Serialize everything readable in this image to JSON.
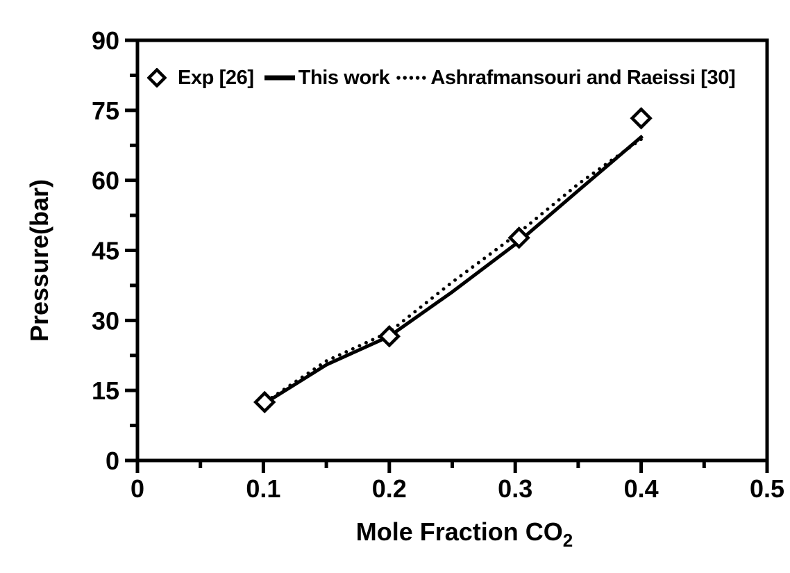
{
  "chart_data": {
    "type": "scatter",
    "title": "",
    "xlabel": "Mole Fraction CO2",
    "ylabel": "Pressure(bar)",
    "xlim": [
      0,
      0.5
    ],
    "ylim": [
      0,
      90
    ],
    "x_ticks": [
      0,
      0.1,
      0.2,
      0.3,
      0.4,
      0.5
    ],
    "x_tick_labels": [
      "0",
      "0.1",
      "0.2",
      "0.3",
      "0.4",
      "0.5"
    ],
    "x_minor_ticks": [
      0.05,
      0.15,
      0.25,
      0.35,
      0.45
    ],
    "y_ticks": [
      0,
      15,
      30,
      45,
      60,
      75,
      90
    ],
    "y_tick_labels": [
      "0",
      "15",
      "30",
      "45",
      "60",
      "75",
      "90"
    ],
    "y_minor_ticks": [
      7.5,
      22.5,
      37.5,
      52.5,
      67.5,
      82.5
    ],
    "grid": false,
    "legend_position": "inside-top",
    "background": "#ffffff",
    "foreground": "#000000",
    "series": [
      {
        "name": "Exp [26]",
        "slug": "exp-26",
        "type": "scatter",
        "marker": "open-diamond",
        "points": [
          [
            0.101,
            12.5
          ],
          [
            0.2,
            26.6
          ],
          [
            0.303,
            47.7
          ],
          [
            0.4,
            73.3
          ]
        ]
      },
      {
        "name": "This work",
        "slug": "this-work",
        "type": "line",
        "style": "solid",
        "points": [
          [
            0.102,
            12.4
          ],
          [
            0.15,
            20.5
          ],
          [
            0.2,
            26.6
          ],
          [
            0.25,
            36.1
          ],
          [
            0.303,
            46.9
          ],
          [
            0.35,
            57.8
          ],
          [
            0.401,
            69.5
          ]
        ]
      },
      {
        "name": "Ashrafmansouri and Raeissi [30]",
        "slug": "ashrafmansouri-raeissi-30",
        "type": "line",
        "style": "dotted",
        "points": [
          [
            0.102,
            12.6
          ],
          [
            0.15,
            21.3
          ],
          [
            0.2,
            27.5
          ],
          [
            0.25,
            38.2
          ],
          [
            0.303,
            48.8
          ],
          [
            0.35,
            59.2
          ],
          [
            0.401,
            69.0
          ]
        ]
      }
    ]
  },
  "axes": {
    "y_title": "Pressure(bar)",
    "x_title_main": "Mole Fraction CO",
    "x_title_sub": "2"
  },
  "legend": {
    "items": [
      {
        "label": "Exp [26]"
      },
      {
        "label": "This work"
      },
      {
        "label": "Ashrafmansouri and Raeissi [30]"
      }
    ]
  }
}
